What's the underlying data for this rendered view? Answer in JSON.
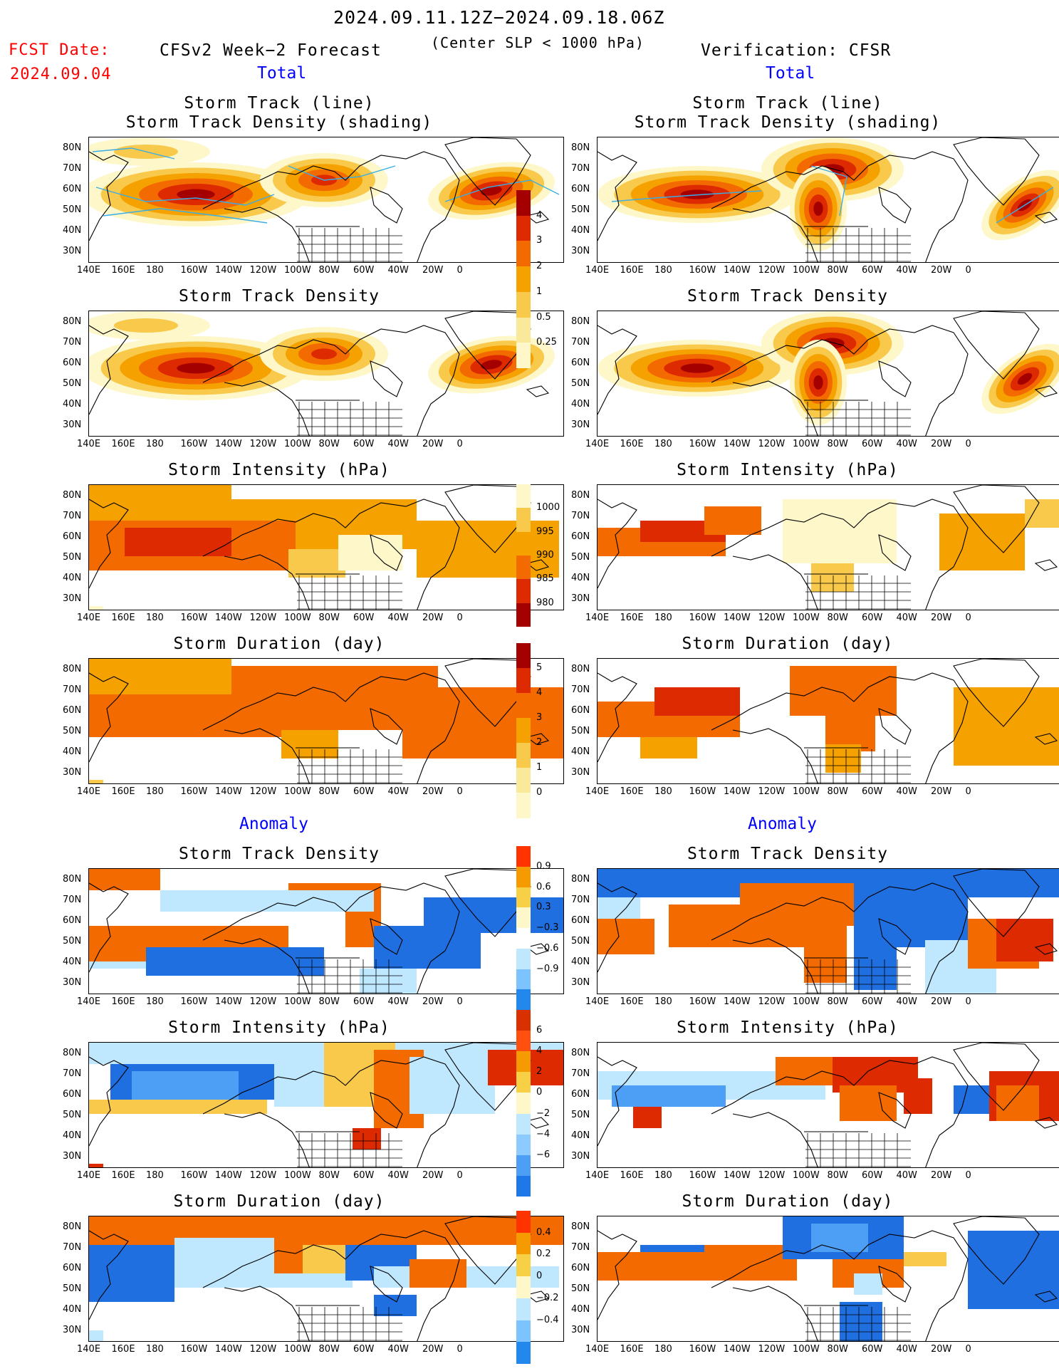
{
  "header": {
    "date_range": "2024.09.11.12Z−2024.09.18.06Z",
    "criterion": "(Center SLP < 1000 hPa)",
    "fcst_date_label": "FCST Date:",
    "fcst_date_value": "2024.09.04",
    "left_title": "CFSv2 Week−2 Forecast",
    "right_title": "Verification: CFSR",
    "total_left": "Total",
    "total_right": "Total",
    "anomaly_left": "Anomaly",
    "anomaly_right": "Anomaly"
  },
  "panels": {
    "row1": {
      "title_line1": "Storm Track (line)",
      "title_line2": "Storm Track Density (shading)"
    },
    "row2": {
      "title": "Storm Track Density"
    },
    "row3": {
      "title": "Storm Intensity (hPa)"
    },
    "row4": {
      "title": "Storm Duration (day)"
    },
    "row5": {
      "title": "Storm Track Density"
    },
    "row6": {
      "title": "Storm Intensity (hPa)"
    },
    "row7": {
      "title": "Storm Duration (day)"
    }
  },
  "axes": {
    "lat_labels": [
      "80N",
      "70N",
      "60N",
      "50N",
      "40N",
      "30N"
    ],
    "lon_labels": [
      "140E",
      "160E",
      "180",
      "160W",
      "140W",
      "120W",
      "100W",
      "80W",
      "60W",
      "40W",
      "20W",
      "0"
    ]
  },
  "colorbars": {
    "density": {
      "labels": [
        "4",
        "3",
        "2",
        "1",
        "0.5",
        "0.25"
      ],
      "colors": [
        "#a50000",
        "#dd2a00",
        "#f26a00",
        "#f5a100",
        "#f8c94b",
        "#fbe99b",
        "#fdf7c9"
      ]
    },
    "intensity": {
      "labels": [
        "1000",
        "995",
        "990",
        "985",
        "980"
      ],
      "colors": [
        "#fdf7c9",
        "#f8c94b",
        "#f5a100",
        "#f26a00",
        "#dd2a00",
        "#a50000"
      ]
    },
    "duration": {
      "labels": [
        "5",
        "4",
        "3",
        "2",
        "1",
        "0"
      ],
      "colors": [
        "#a50000",
        "#dd2a00",
        "#f26a00",
        "#f5a100",
        "#f8c94b",
        "#fbe99b",
        "#fdf7c9"
      ]
    },
    "anom_density": {
      "labels": [
        "0.9",
        "0.6",
        "0.3",
        "−0.3",
        "−0.6",
        "−0.9"
      ],
      "colors": [
        "#ff3300",
        "#f59a00",
        "#f8d046",
        "#fdf7c9",
        "#ffffff",
        "#bfe8ff",
        "#7cc3ff",
        "#2288ee"
      ]
    },
    "anom_intensity": {
      "labels": [
        "6",
        "4",
        "2",
        "0",
        "−2",
        "−4",
        "−6"
      ],
      "colors": [
        "#d93000",
        "#ff5010",
        "#f59a00",
        "#f8d046",
        "#fdf7c9",
        "#bfe8ff",
        "#8ccaff",
        "#4c9ff5",
        "#1f78e8"
      ]
    },
    "anom_duration": {
      "labels": [
        "0.4",
        "0.2",
        "0",
        "−0.2",
        "−0.4"
      ],
      "colors": [
        "#ff3300",
        "#f59a00",
        "#f8d046",
        "#fdf7c9",
        "#bfe8ff",
        "#7cc3ff",
        "#2288ee"
      ]
    }
  },
  "palette": {
    "dark_red": "#a50000",
    "red": "#dd2a00",
    "orange": "#f26a00",
    "amber": "#f5a100",
    "yellow": "#f8c94b",
    "pale": "#fdf7c9",
    "blue": "#1f6fe0",
    "light_blue": "#bfe8ff",
    "track_line": "#3aaee8"
  }
}
